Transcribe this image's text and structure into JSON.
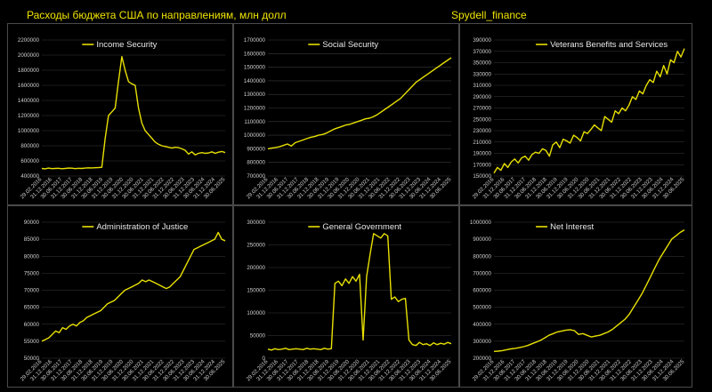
{
  "header": {
    "title": "Расходы бюджета США по направлениям, млн долл",
    "brand": "Spydell_finance"
  },
  "colors": {
    "background": "#000000",
    "series": "#e8e000",
    "grid": "#3a3a3a",
    "text": "#cfcfcf"
  },
  "chart_data": [
    {
      "type": "line",
      "series": [
        {
          "name": "Income Security",
          "values": [
            500000,
            495000,
            505000,
            498000,
            500000,
            502000,
            496000,
            500000,
            505000,
            503000,
            498000,
            502000,
            500000,
            505000,
            508000,
            507000,
            510000,
            512000,
            515000,
            900000,
            1200000,
            1250000,
            1300000,
            1650000,
            1980000,
            1800000,
            1650000,
            1620000,
            1600000,
            1300000,
            1100000,
            1000000,
            950000,
            900000,
            850000,
            820000,
            800000,
            790000,
            780000,
            770000,
            780000,
            775000,
            760000,
            740000,
            690000,
            720000,
            680000,
            700000,
            710000,
            700000,
            705000,
            720000,
            700000,
            715000,
            725000,
            710000
          ]
        }
      ],
      "ylim": [
        400000,
        2200000
      ],
      "yticks": [
        "400000",
        "600000",
        "800000",
        "1000000",
        "1200000",
        "1400000",
        "1600000",
        "1800000",
        "2000000",
        "2200000"
      ],
      "xticks": [
        "29.02.2016",
        "31.12.2016",
        "30.06.2017",
        "31.12.2017",
        "30.06.2018",
        "31.12.2018",
        "30.06.2019",
        "31.12.2019",
        "30.06.2020",
        "31.12.2020",
        "30.06.2021",
        "31.12.2021",
        "30.06.2022",
        "31.12.2022",
        "30.06.2023",
        "31.12.2023",
        "30.06.2024",
        "31.12.2024",
        "30.06.2025"
      ]
    },
    {
      "type": "line",
      "series": [
        {
          "name": "Social Security",
          "values": [
            900000,
            905000,
            910000,
            915000,
            925000,
            935000,
            920000,
            945000,
            955000,
            965000,
            975000,
            985000,
            990000,
            1000000,
            1005000,
            1015000,
            1030000,
            1045000,
            1055000,
            1065000,
            1075000,
            1080000,
            1090000,
            1100000,
            1110000,
            1120000,
            1125000,
            1135000,
            1150000,
            1170000,
            1190000,
            1210000,
            1230000,
            1250000,
            1270000,
            1300000,
            1330000,
            1360000,
            1390000,
            1410000,
            1430000,
            1450000,
            1470000,
            1490000,
            1510000,
            1530000,
            1550000,
            1570000
          ]
        }
      ],
      "ylim": [
        700000,
        1700000
      ],
      "yticks": [
        "700000",
        "800000",
        "900000",
        "1000000",
        "1100000",
        "1200000",
        "1300000",
        "1400000",
        "1500000",
        "1600000",
        "1700000"
      ],
      "xticks": [
        "29.02.2016",
        "31.12.2016",
        "30.06.2017",
        "31.12.2017",
        "30.06.2018",
        "31.12.2018",
        "30.06.2019",
        "31.12.2019",
        "30.06.2020",
        "31.12.2020",
        "30.06.2021",
        "31.12.2021",
        "30.06.2022",
        "31.12.2022",
        "30.06.2023",
        "31.12.2023",
        "30.06.2024",
        "31.12.2024",
        "30.06.2025"
      ]
    },
    {
      "type": "line",
      "series": [
        {
          "name": "Veterans Benefits and Services",
          "values": [
            155000,
            165000,
            160000,
            172000,
            165000,
            175000,
            180000,
            173000,
            182000,
            185000,
            178000,
            188000,
            192000,
            190000,
            198000,
            195000,
            185000,
            205000,
            210000,
            200000,
            215000,
            212000,
            208000,
            222000,
            218000,
            212000,
            228000,
            225000,
            232000,
            240000,
            235000,
            230000,
            255000,
            250000,
            245000,
            265000,
            260000,
            270000,
            265000,
            275000,
            290000,
            285000,
            300000,
            295000,
            310000,
            320000,
            315000,
            335000,
            325000,
            345000,
            330000,
            355000,
            350000,
            370000,
            360000,
            375000
          ]
        }
      ],
      "ylim": [
        150000,
        390000
      ],
      "yticks": [
        "150000",
        "170000",
        "190000",
        "210000",
        "230000",
        "250000",
        "270000",
        "290000",
        "310000",
        "330000",
        "350000",
        "370000",
        "390000"
      ],
      "xticks": [
        "29.02.2016",
        "31.12.2016",
        "30.06.2017",
        "31.12.2017",
        "30.06.2018",
        "31.12.2018",
        "30.06.2019",
        "31.12.2019",
        "30.06.2020",
        "31.12.2020",
        "30.06.2021",
        "31.12.2021",
        "30.06.2022",
        "31.12.2022",
        "30.06.2023",
        "31.12.2023",
        "30.06.2024",
        "31.12.2024",
        "30.06.2025"
      ]
    },
    {
      "type": "line",
      "series": [
        {
          "name": "Administration of Justice",
          "values": [
            55000,
            55500,
            56000,
            57000,
            58000,
            57500,
            59000,
            58500,
            59500,
            60000,
            59500,
            60500,
            61000,
            62000,
            62500,
            63000,
            63500,
            64000,
            65000,
            66000,
            66500,
            67000,
            68000,
            69000,
            70000,
            70500,
            71000,
            71500,
            72000,
            73000,
            72500,
            73000,
            72500,
            72000,
            71500,
            71000,
            70500,
            71000,
            72000,
            73000,
            74000,
            76000,
            78000,
            80000,
            82000,
            82500,
            83000,
            83500,
            84000,
            84500,
            85000,
            87000,
            85000,
            84500
          ]
        }
      ],
      "ylim": [
        50000,
        90000
      ],
      "yticks": [
        "50000",
        "55000",
        "60000",
        "65000",
        "70000",
        "75000",
        "80000",
        "85000",
        "90000"
      ],
      "xticks": [
        "29.02.2016",
        "31.12.2016",
        "30.06.2017",
        "31.12.2017",
        "30.06.2018",
        "31.12.2018",
        "30.06.2019",
        "31.12.2019",
        "30.06.2020",
        "31.12.2020",
        "30.06.2021",
        "31.12.2021",
        "30.06.2022",
        "31.12.2022",
        "30.06.2023",
        "31.12.2023",
        "30.06.2024",
        "31.12.2024",
        "30.06.2025"
      ]
    },
    {
      "type": "line",
      "series": [
        {
          "name": "General Government",
          "values": [
            20000,
            18000,
            21000,
            19000,
            20000,
            22000,
            19000,
            20000,
            21000,
            20000,
            19000,
            22000,
            20000,
            21000,
            20000,
            19000,
            22000,
            20000,
            21000,
            165000,
            170000,
            160000,
            175000,
            165000,
            180000,
            170000,
            185000,
            40000,
            180000,
            230000,
            275000,
            270000,
            265000,
            275000,
            270000,
            130000,
            135000,
            125000,
            130000,
            132000,
            40000,
            30000,
            28000,
            35000,
            30000,
            32000,
            28000,
            34000,
            30000,
            33000,
            31000,
            35000,
            32000
          ]
        }
      ],
      "ylim": [
        0,
        300000
      ],
      "yticks": [
        "0",
        "50000",
        "100000",
        "150000",
        "200000",
        "250000",
        "300000"
      ],
      "xticks": [
        "29.02.2016",
        "31.12.2016",
        "30.06.2017",
        "31.12.2017",
        "30.06.2018",
        "31.12.2018",
        "30.06.2019",
        "31.12.2019",
        "30.06.2020",
        "31.12.2020",
        "30.06.2021",
        "31.12.2021",
        "30.06.2022",
        "31.12.2022",
        "30.06.2023",
        "31.12.2023",
        "30.06.2024",
        "31.12.2024",
        "30.06.2025"
      ]
    },
    {
      "type": "line",
      "series": [
        {
          "name": "Net Interest",
          "values": [
            240000,
            242000,
            245000,
            250000,
            255000,
            258000,
            262000,
            268000,
            275000,
            285000,
            295000,
            305000,
            320000,
            335000,
            345000,
            355000,
            360000,
            365000,
            368000,
            362000,
            340000,
            345000,
            335000,
            325000,
            330000,
            335000,
            345000,
            355000,
            370000,
            390000,
            410000,
            430000,
            460000,
            500000,
            540000,
            580000,
            630000,
            680000,
            730000,
            780000,
            820000,
            860000,
            900000,
            920000,
            940000,
            955000
          ]
        }
      ],
      "ylim": [
        200000,
        1000000
      ],
      "yticks": [
        "200000",
        "300000",
        "400000",
        "500000",
        "600000",
        "700000",
        "800000",
        "900000",
        "1000000"
      ],
      "xticks": [
        "29.02.2016",
        "31.12.2016",
        "30.06.2017",
        "31.12.2017",
        "30.06.2018",
        "31.12.2018",
        "30.06.2019",
        "31.12.2019",
        "30.06.2020",
        "31.12.2020",
        "30.06.2021",
        "31.12.2021",
        "30.06.2022",
        "31.12.2022",
        "30.06.2023",
        "31.12.2023",
        "30.06.2024",
        "31.12.2024",
        "30.06.2025"
      ]
    }
  ]
}
